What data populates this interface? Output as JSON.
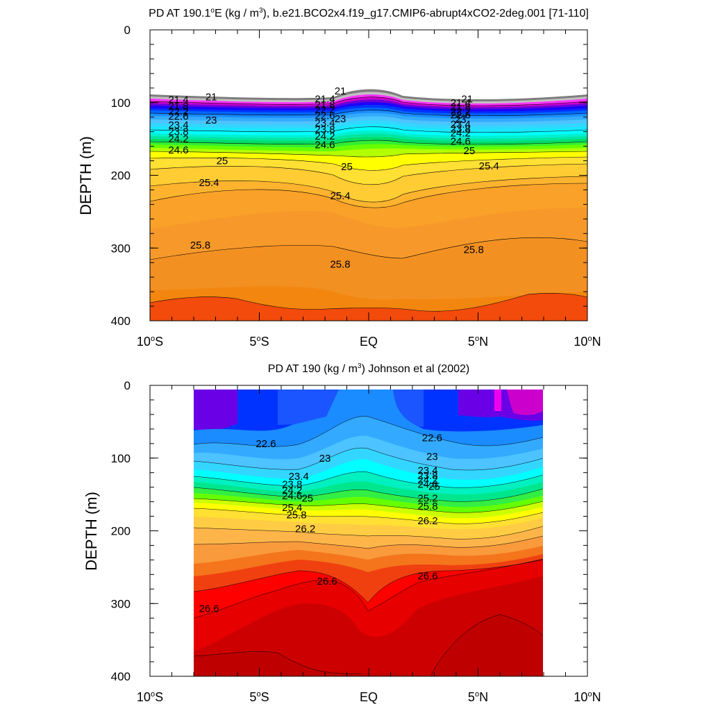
{
  "chart_data": [
    {
      "type": "contour",
      "title_parts": [
        "PD AT 190.1",
        "o",
        "E (kg / m",
        "3",
        "), b.e21.BCO2x4.f19_g17.CMIP6-abrupt4xCO2-2deg.001 [71-110]"
      ],
      "ylabel": "DEPTH (m)",
      "xlim": [
        -10,
        10
      ],
      "ylim": [
        0,
        400
      ],
      "y_inverted": true,
      "x_ticks": [
        {
          "v": -10,
          "pre": "10",
          "sup": "o",
          "post": "S"
        },
        {
          "v": -5,
          "pre": "5",
          "sup": "o",
          "post": "S"
        },
        {
          "v": 0,
          "pre": "EQ",
          "sup": "",
          "post": ""
        },
        {
          "v": 5,
          "pre": "5",
          "sup": "o",
          "post": "N"
        },
        {
          "v": 10,
          "pre": "10",
          "sup": "o",
          "post": "N"
        }
      ],
      "y_ticks": [
        "0",
        "100",
        "200",
        "300",
        "400"
      ],
      "data_x_range": [
        -10,
        10
      ],
      "data_top": [
        [
          -10,
          90
        ],
        [
          -5,
          93
        ],
        [
          -2,
          93
        ],
        [
          0,
          82
        ],
        [
          2,
          88
        ],
        [
          5,
          95
        ],
        [
          8,
          93
        ],
        [
          10,
          90
        ]
      ],
      "contour_labels": [
        {
          "x": -7.2,
          "y": 92,
          "text": "21"
        },
        {
          "x": -8.7,
          "y": 96,
          "text": "21.4"
        },
        {
          "x": -8.7,
          "y": 105,
          "text": "21.8"
        },
        {
          "x": -8.7,
          "y": 112,
          "text": "22.2"
        },
        {
          "x": -8.7,
          "y": 119,
          "text": "22.6"
        },
        {
          "x": -7.2,
          "y": 124,
          "text": "23"
        },
        {
          "x": -8.7,
          "y": 131,
          "text": "23.4"
        },
        {
          "x": -8.7,
          "y": 140,
          "text": "23.8"
        },
        {
          "x": -8.7,
          "y": 150,
          "text": "24.2"
        },
        {
          "x": -8.7,
          "y": 165,
          "text": "24.6"
        },
        {
          "x": -6.7,
          "y": 180,
          "text": "25"
        },
        {
          "x": -7.3,
          "y": 210,
          "text": "25.4"
        },
        {
          "x": -7.7,
          "y": 296,
          "text": "25.8"
        },
        {
          "x": -1.3,
          "y": 84,
          "text": "21"
        },
        {
          "x": -2.0,
          "y": 95,
          "text": "21.4"
        },
        {
          "x": -2.0,
          "y": 103,
          "text": "21.8"
        },
        {
          "x": -2.0,
          "y": 110,
          "text": "22.2"
        },
        {
          "x": -2.0,
          "y": 118,
          "text": "22.6"
        },
        {
          "x": -1.3,
          "y": 122,
          "text": "23"
        },
        {
          "x": -2.0,
          "y": 128,
          "text": "23.4"
        },
        {
          "x": -2.0,
          "y": 137,
          "text": "23.8"
        },
        {
          "x": -2.0,
          "y": 146,
          "text": "24.2"
        },
        {
          "x": -2.0,
          "y": 158,
          "text": "24.6"
        },
        {
          "x": -1.0,
          "y": 188,
          "text": "25"
        },
        {
          "x": -1.3,
          "y": 228,
          "text": "25.4"
        },
        {
          "x": -1.3,
          "y": 322,
          "text": "25.8"
        },
        {
          "x": 4.5,
          "y": 95,
          "text": "21"
        },
        {
          "x": 4.2,
          "y": 100,
          "text": "21.4"
        },
        {
          "x": 4.2,
          "y": 106,
          "text": "21.8"
        },
        {
          "x": 4.2,
          "y": 112,
          "text": "22.2"
        },
        {
          "x": 4.2,
          "y": 117,
          "text": "22.6"
        },
        {
          "x": 4.2,
          "y": 123,
          "text": "23"
        },
        {
          "x": 4.2,
          "y": 130,
          "text": "23.4"
        },
        {
          "x": 4.2,
          "y": 136,
          "text": "23.8"
        },
        {
          "x": 4.2,
          "y": 142,
          "text": "24.2"
        },
        {
          "x": 4.2,
          "y": 153,
          "text": "24.6"
        },
        {
          "x": 4.6,
          "y": 166,
          "text": "25"
        },
        {
          "x": 5.5,
          "y": 187,
          "text": "25.4"
        },
        {
          "x": 4.8,
          "y": 302,
          "text": "25.8"
        }
      ]
    },
    {
      "type": "contour",
      "title_parts": [
        "PD AT 190 (kg / m",
        "3",
        ") Johnson et al (2002)",
        "",
        ""
      ],
      "ylabel": "DEPTH (m)",
      "xlim": [
        -10,
        10
      ],
      "ylim": [
        0,
        400
      ],
      "y_inverted": true,
      "x_ticks": [
        {
          "v": -10,
          "pre": "10",
          "sup": "o",
          "post": "S"
        },
        {
          "v": -5,
          "pre": "5",
          "sup": "o",
          "post": "S"
        },
        {
          "v": 0,
          "pre": "EQ",
          "sup": "",
          "post": ""
        },
        {
          "v": 5,
          "pre": "5",
          "sup": "o",
          "post": "N"
        },
        {
          "v": 10,
          "pre": "10",
          "sup": "o",
          "post": "N"
        }
      ],
      "y_ticks": [
        "0",
        "100",
        "200",
        "300",
        "400"
      ],
      "data_x_range": [
        -8,
        8
      ],
      "data_top": [
        [
          -8,
          5
        ],
        [
          8,
          5
        ]
      ],
      "contour_labels": [
        {
          "x": -4.7,
          "y": 80,
          "text": "22.6"
        },
        {
          "x": -2.0,
          "y": 100,
          "text": "23"
        },
        {
          "x": -3.2,
          "y": 125,
          "text": "23.4"
        },
        {
          "x": -3.5,
          "y": 136,
          "text": "23.8"
        },
        {
          "x": -3.5,
          "y": 144,
          "text": "24.2"
        },
        {
          "x": -3.5,
          "y": 152,
          "text": "24.6"
        },
        {
          "x": -2.8,
          "y": 155,
          "text": "25"
        },
        {
          "x": -3.5,
          "y": 168,
          "text": "25.4"
        },
        {
          "x": -3.3,
          "y": 178,
          "text": "25.8"
        },
        {
          "x": -2.9,
          "y": 197,
          "text": "26.2"
        },
        {
          "x": -1.9,
          "y": 269,
          "text": "26.6"
        },
        {
          "x": -7.3,
          "y": 307,
          "text": "26.6"
        },
        {
          "x": 2.9,
          "y": 72,
          "text": "22.6"
        },
        {
          "x": 2.9,
          "y": 98,
          "text": "23"
        },
        {
          "x": 2.7,
          "y": 117,
          "text": "23.4"
        },
        {
          "x": 2.7,
          "y": 124,
          "text": "23.8"
        },
        {
          "x": 2.7,
          "y": 130,
          "text": "24.2"
        },
        {
          "x": 2.7,
          "y": 136,
          "text": "24.6"
        },
        {
          "x": 3.0,
          "y": 139,
          "text": "25"
        },
        {
          "x": 2.7,
          "y": 155,
          "text": "25.2"
        },
        {
          "x": 2.7,
          "y": 166,
          "text": "25.8"
        },
        {
          "x": 2.7,
          "y": 186,
          "text": "26.2"
        },
        {
          "x": 2.7,
          "y": 262,
          "text": "26.6"
        }
      ]
    }
  ]
}
